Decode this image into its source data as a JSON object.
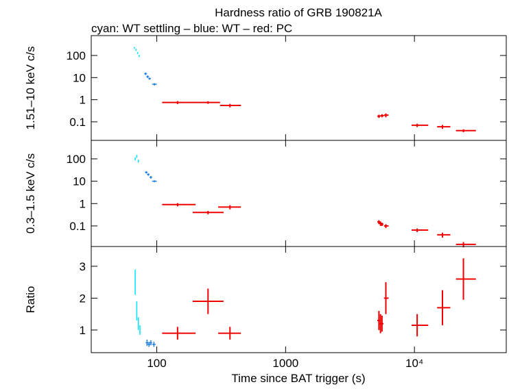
{
  "chart_data": [
    {
      "type": "scatter",
      "title": "Hardness ratio of GRB 190821A",
      "subtitle": "cyan: WT settling – blue: WT – red: PC",
      "ylabel": "1.51–10 keV c/s",
      "xlog": true,
      "ylog": true,
      "xlim": [
        31,
        51600
      ],
      "ylim": [
        0.0145,
        790
      ],
      "yticks": [
        100,
        10,
        1,
        0.1
      ],
      "series": [
        {
          "color": "#00e5ff",
          "x": [
            67,
            69,
            71,
            73
          ],
          "x_low": [
            66.5,
            68.5,
            70.5,
            72.5
          ],
          "x_high": [
            67.5,
            69.5,
            71.5,
            73.5
          ],
          "values": [
            220,
            180,
            130,
            95
          ],
          "y_err": [
            20,
            20,
            15,
            10
          ]
        },
        {
          "color": "#1f7fe0",
          "x": [
            82,
            85,
            88,
            96
          ],
          "x_low": [
            80,
            83,
            86,
            92
          ],
          "x_high": [
            84,
            87,
            90,
            100
          ],
          "values": [
            15,
            11,
            9,
            5
          ],
          "y_err": [
            2,
            1.5,
            1,
            0.6
          ]
        },
        {
          "color": "#ee0000",
          "x": [
            145,
            250,
            370,
            5300,
            5600,
            6000,
            10500,
            16500,
            24000
          ],
          "x_low": [
            110,
            200,
            310,
            5150,
            5450,
            5800,
            9500,
            15000,
            21000
          ],
          "x_high": [
            200,
            310,
            450,
            5450,
            5800,
            6300,
            12800,
            19000,
            30000
          ],
          "values": [
            0.75,
            0.75,
            0.55,
            0.18,
            0.19,
            0.2,
            0.07,
            0.06,
            0.04
          ],
          "y_err": [
            0.12,
            0.1,
            0.1,
            0.03,
            0.03,
            0.04,
            0.012,
            0.012,
            0.006
          ]
        }
      ]
    },
    {
      "type": "scatter",
      "ylabel": "0.3–1.5 keV c/s",
      "xlog": true,
      "ylog": true,
      "xlim": [
        31,
        51600
      ],
      "ylim": [
        0.012,
        670
      ],
      "yticks": [
        100,
        10,
        1,
        0.1
      ],
      "series": [
        {
          "color": "#00e5ff",
          "x": [
            68,
            70,
            72
          ],
          "x_low": [
            67.5,
            69.5,
            71.5
          ],
          "x_high": [
            68.5,
            70.5,
            72.5
          ],
          "values": [
            100,
            130,
            80
          ],
          "y_err": [
            15,
            20,
            12
          ]
        },
        {
          "color": "#1f7fe0",
          "x": [
            83,
            86,
            90,
            96
          ],
          "x_low": [
            81,
            84,
            88,
            92
          ],
          "x_high": [
            85,
            88,
            92,
            100
          ],
          "values": [
            25,
            20,
            15,
            10
          ],
          "y_err": [
            3,
            2.5,
            2,
            1
          ]
        },
        {
          "color": "#ee0000",
          "x": [
            145,
            250,
            370,
            5300,
            5450,
            5600,
            6000,
            10500,
            16500,
            24000
          ],
          "x_low": [
            110,
            190,
            300,
            5150,
            5350,
            5500,
            5800,
            9500,
            15000,
            21000
          ],
          "x_high": [
            200,
            330,
            450,
            5400,
            5550,
            5750,
            6300,
            12800,
            19000,
            30000
          ],
          "values": [
            0.9,
            0.4,
            0.7,
            0.15,
            0.13,
            0.12,
            0.1,
            0.065,
            0.04,
            0.015
          ],
          "y_err": [
            0.15,
            0.07,
            0.15,
            0.03,
            0.03,
            0.02,
            0.02,
            0.012,
            0.01,
            0.004
          ]
        }
      ]
    },
    {
      "type": "scatter",
      "ylabel": "Ratio",
      "xlabel": "Time since BAT trigger (s)",
      "xlog": true,
      "ylog": false,
      "xlim": [
        31,
        51600
      ],
      "ylim": [
        0.29,
        3.62
      ],
      "yticks": [
        1,
        2,
        3
      ],
      "xticks": [
        100,
        1000,
        {
          "value": 10000,
          "label": "10⁴"
        }
      ],
      "series": [
        {
          "color": "#00e5ff",
          "x": [
            68,
            70,
            72,
            74
          ],
          "x_low": [
            67.5,
            69.5,
            71.5,
            73.5
          ],
          "x_high": [
            68.5,
            70.5,
            72.5,
            74.5
          ],
          "values": [
            2.5,
            1.6,
            1.2,
            1.0
          ],
          "y_err": [
            0.4,
            0.3,
            0.2,
            0.15
          ]
        },
        {
          "color": "#1f7fe0",
          "x": [
            84,
            87,
            90,
            95
          ],
          "x_low": [
            82,
            85,
            88,
            92
          ],
          "x_high": [
            86,
            89,
            92,
            98
          ],
          "values": [
            0.6,
            0.55,
            0.6,
            0.55
          ],
          "y_err": [
            0.1,
            0.08,
            0.08,
            0.08
          ]
        },
        {
          "color": "#ee0000",
          "x": [
            145,
            250,
            370,
            5300,
            5450,
            5600,
            6000,
            10500,
            16500,
            24000
          ],
          "x_low": [
            110,
            190,
            300,
            5150,
            5350,
            5500,
            5800,
            9500,
            15000,
            21000
          ],
          "x_high": [
            200,
            330,
            450,
            5400,
            5550,
            5750,
            6300,
            12800,
            19000,
            30000
          ],
          "values": [
            0.9,
            1.9,
            0.9,
            1.3,
            1.2,
            1.2,
            2.0,
            1.15,
            1.7,
            2.6
          ],
          "y_err": [
            0.2,
            0.4,
            0.2,
            0.3,
            0.3,
            0.25,
            0.5,
            0.35,
            0.55,
            0.65
          ]
        }
      ]
    }
  ]
}
